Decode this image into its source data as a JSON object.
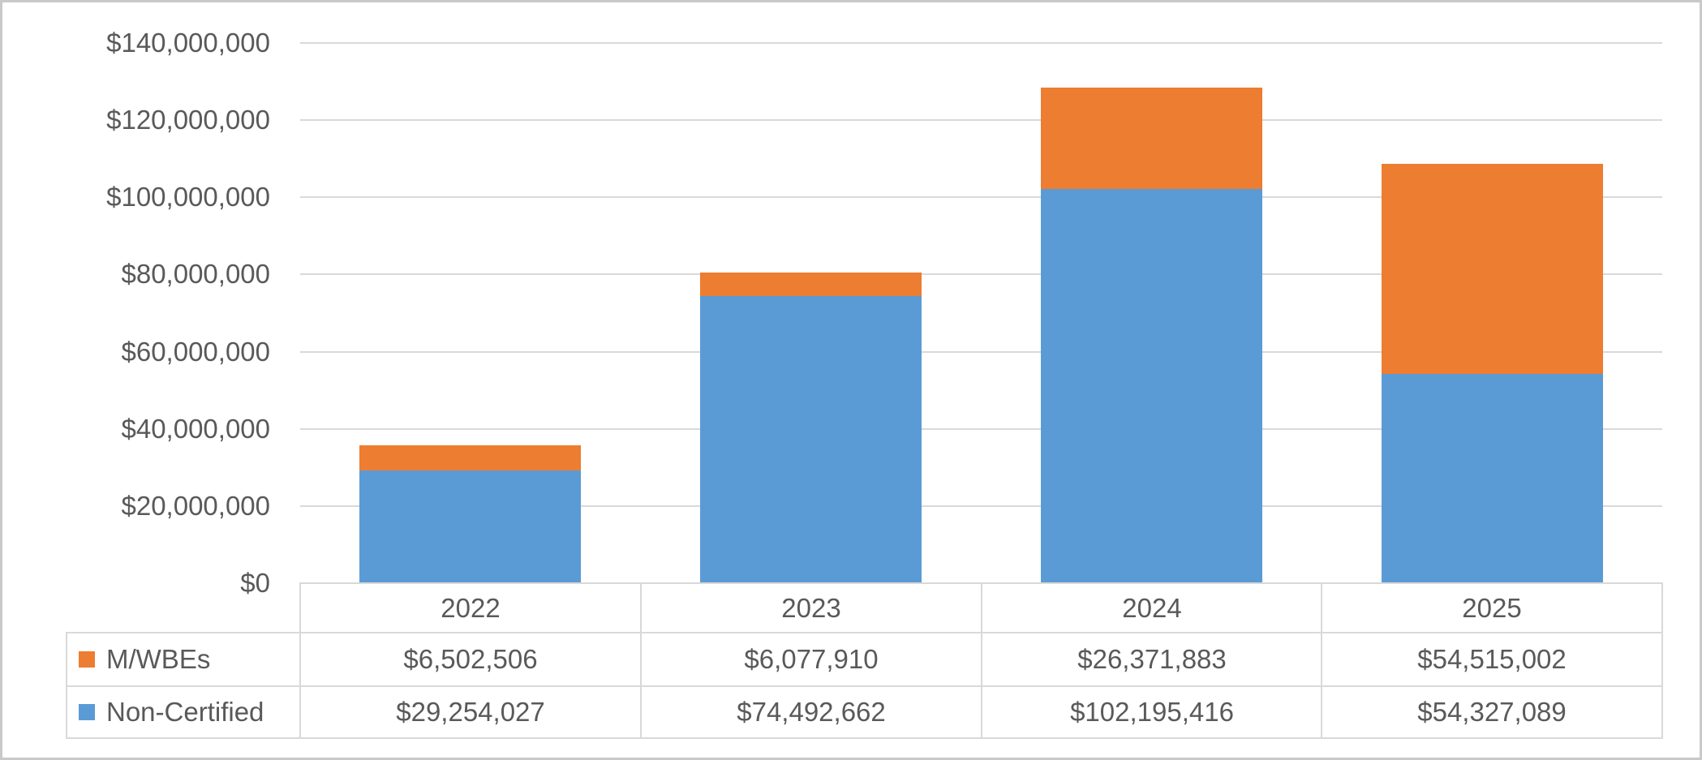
{
  "window": {
    "background": "#FFFFFF",
    "border_color": "#C9C9C9"
  },
  "chart_data": {
    "type": "bar",
    "stacked": true,
    "title": "",
    "categories": [
      "2022",
      "2023",
      "2024",
      "2025"
    ],
    "series": [
      {
        "name": "M/WBEs",
        "color": "#ED7D31",
        "values": [
          6502506,
          6077910,
          26371883,
          54515002
        ],
        "formatted": [
          "$6,502,506",
          "$6,077,910",
          "$26,371,883",
          "$54,515,002"
        ]
      },
      {
        "name": "Non-Certified",
        "color": "#5B9BD5",
        "values": [
          29254027,
          74492662,
          102195416,
          54327089
        ],
        "formatted": [
          "$29,254,027",
          "$74,492,662",
          "$102,195,416",
          "$54,327,089"
        ]
      }
    ],
    "stack_bottom_to_top": [
      "Non-Certified",
      "M/WBEs"
    ],
    "y_axis": {
      "min": 0,
      "max": 140000000,
      "step": 20000000,
      "tick_labels": [
        "$0",
        "$20,000,000",
        "$40,000,000",
        "$60,000,000",
        "$80,000,000",
        "$100,000,000",
        "$120,000,000",
        "$140,000,000"
      ]
    },
    "x_axis": {
      "labels_shown_in_data_table": true
    },
    "grid": true,
    "legend_position": "data-table-left",
    "text_color": "#595959",
    "gridline_color": "#D9D9D9",
    "table_border_color": "#D9D9D9"
  }
}
